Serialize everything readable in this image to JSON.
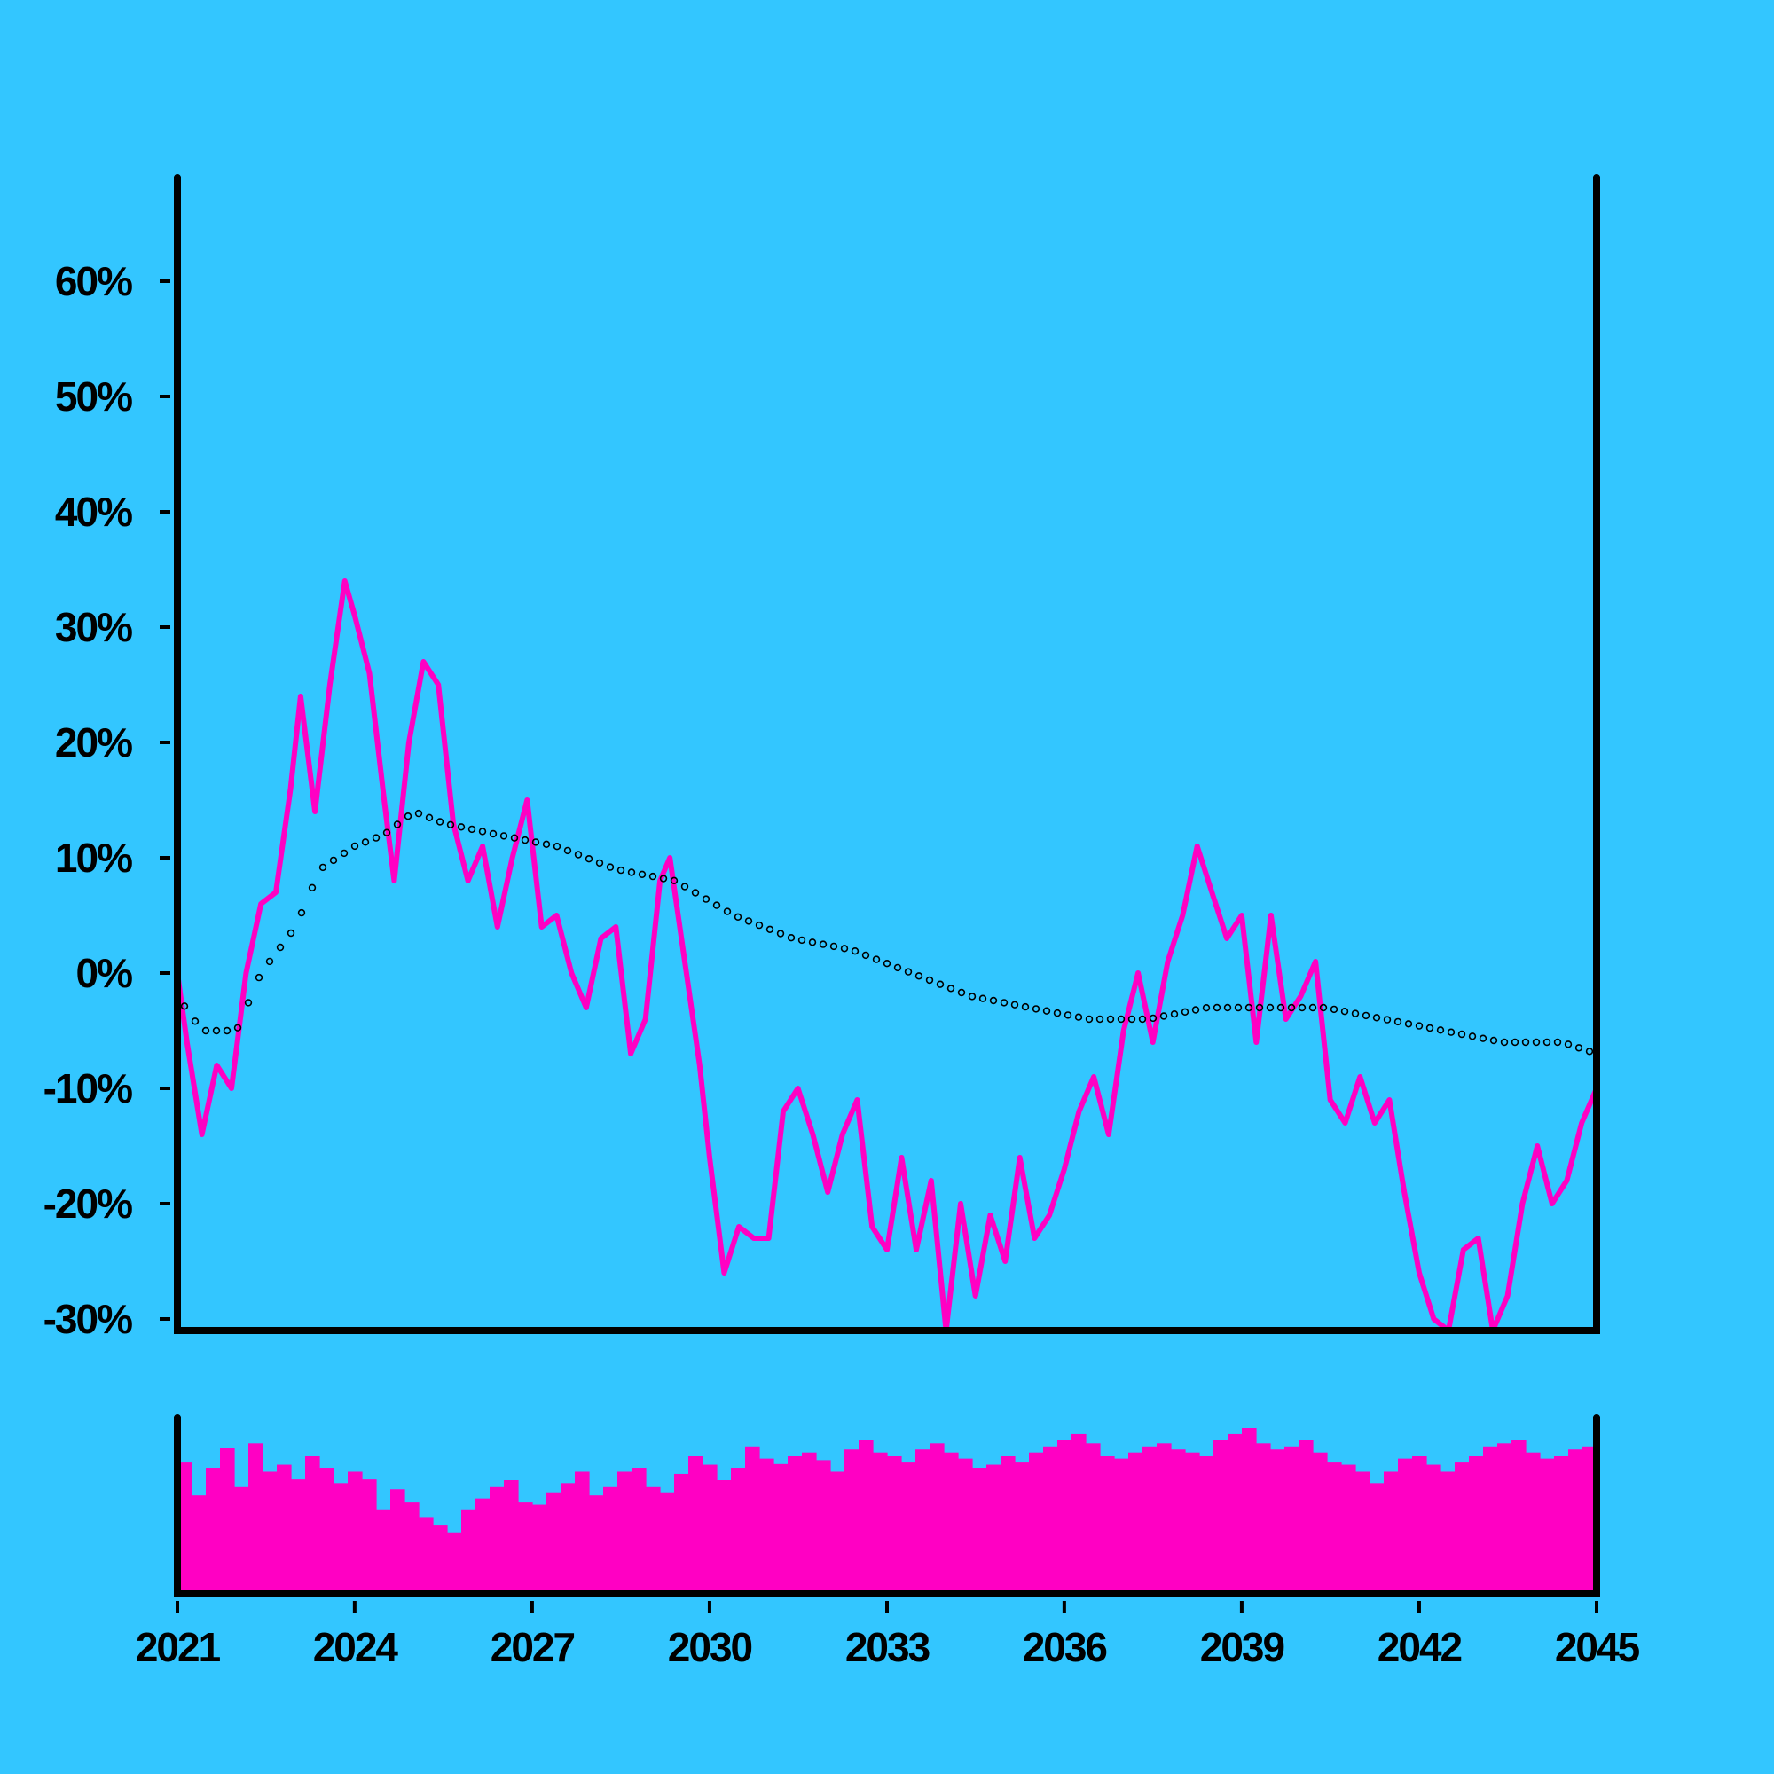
{
  "colors": {
    "background": "#33c6ff",
    "series": "#ff00c3",
    "trend_markers": "#000000",
    "axes": "#000000"
  },
  "chart_data": {
    "type": "line",
    "x_axis": {
      "type": "date",
      "range": [
        "2021-01-01",
        "2045-01-01"
      ],
      "tick_labels": [
        "2021",
        "2024",
        "2027",
        "2030",
        "2033",
        "2036",
        "2039",
        "2042",
        "2045"
      ]
    },
    "y_axis": {
      "unit": "%",
      "range": [
        -31,
        69
      ],
      "tick_labels": [
        "-30%",
        "-20%",
        "-10%",
        "0%",
        "10%",
        "20%",
        "30%",
        "40%",
        "50%",
        "60%"
      ]
    },
    "grid": false,
    "legend": "none",
    "series": [
      {
        "style": "line",
        "points": [
          [
            "2021-01-01",
            0
          ],
          [
            "2021-03-01",
            -6
          ],
          [
            "2021-06-01",
            -14
          ],
          [
            "2021-09-01",
            -8
          ],
          [
            "2021-12-01",
            -10
          ],
          [
            "2022-03-01",
            0
          ],
          [
            "2022-06-01",
            6
          ],
          [
            "2022-09-01",
            7
          ],
          [
            "2022-12-01",
            16
          ],
          [
            "2023-02-01",
            24
          ],
          [
            "2023-05-01",
            14
          ],
          [
            "2023-08-01",
            25
          ],
          [
            "2023-11-01",
            34
          ],
          [
            "2024-01-01",
            31
          ],
          [
            "2024-04-01",
            26
          ],
          [
            "2024-07-01",
            15
          ],
          [
            "2024-09-01",
            8
          ],
          [
            "2024-12-01",
            20
          ],
          [
            "2025-03-01",
            27
          ],
          [
            "2025-06-01",
            25
          ],
          [
            "2025-09-01",
            13
          ],
          [
            "2025-12-01",
            8
          ],
          [
            "2026-03-01",
            11
          ],
          [
            "2026-06-01",
            4
          ],
          [
            "2026-09-01",
            10
          ],
          [
            "2026-12-01",
            15
          ],
          [
            "2027-03-01",
            4
          ],
          [
            "2027-06-01",
            5
          ],
          [
            "2027-09-01",
            0
          ],
          [
            "2027-12-01",
            -3
          ],
          [
            "2028-03-01",
            3
          ],
          [
            "2028-06-01",
            4
          ],
          [
            "2028-09-01",
            -7
          ],
          [
            "2028-12-01",
            -4
          ],
          [
            "2029-03-01",
            8
          ],
          [
            "2029-05-01",
            10
          ],
          [
            "2029-08-01",
            1
          ],
          [
            "2029-11-01",
            -8
          ],
          [
            "2030-01-01",
            -16
          ],
          [
            "2030-04-01",
            -26
          ],
          [
            "2030-07-01",
            -22
          ],
          [
            "2030-10-01",
            -23
          ],
          [
            "2031-01-01",
            -23
          ],
          [
            "2031-04-01",
            -12
          ],
          [
            "2031-07-01",
            -10
          ],
          [
            "2031-10-01",
            -14
          ],
          [
            "2032-01-01",
            -19
          ],
          [
            "2032-04-01",
            -14
          ],
          [
            "2032-07-01",
            -11
          ],
          [
            "2032-10-01",
            -22
          ],
          [
            "2033-01-01",
            -24
          ],
          [
            "2033-04-01",
            -16
          ],
          [
            "2033-07-01",
            -24
          ],
          [
            "2033-10-01",
            -18
          ],
          [
            "2034-01-01",
            -31
          ],
          [
            "2034-04-01",
            -20
          ],
          [
            "2034-07-01",
            -28
          ],
          [
            "2034-10-01",
            -21
          ],
          [
            "2035-01-01",
            -25
          ],
          [
            "2035-04-01",
            -16
          ],
          [
            "2035-07-01",
            -23
          ],
          [
            "2035-10-01",
            -21
          ],
          [
            "2036-01-01",
            -17
          ],
          [
            "2036-04-01",
            -12
          ],
          [
            "2036-07-01",
            -9
          ],
          [
            "2036-10-01",
            -14
          ],
          [
            "2037-01-01",
            -5
          ],
          [
            "2037-04-01",
            0
          ],
          [
            "2037-07-01",
            -6
          ],
          [
            "2037-10-01",
            1
          ],
          [
            "2038-01-01",
            5
          ],
          [
            "2038-04-01",
            11
          ],
          [
            "2038-07-01",
            7
          ],
          [
            "2038-10-01",
            3
          ],
          [
            "2039-01-01",
            5
          ],
          [
            "2039-04-01",
            -6
          ],
          [
            "2039-07-01",
            5
          ],
          [
            "2039-10-01",
            -4
          ],
          [
            "2040-01-01",
            -2
          ],
          [
            "2040-04-01",
            1
          ],
          [
            "2040-07-01",
            -11
          ],
          [
            "2040-10-01",
            -13
          ],
          [
            "2041-01-01",
            -9
          ],
          [
            "2041-04-01",
            -13
          ],
          [
            "2041-07-01",
            -11
          ],
          [
            "2041-10-01",
            -19
          ],
          [
            "2042-01-01",
            -26
          ],
          [
            "2042-04-01",
            -30
          ],
          [
            "2042-07-01",
            -31
          ],
          [
            "2042-10-01",
            -24
          ],
          [
            "2043-01-01",
            -23
          ],
          [
            "2043-04-01",
            -31
          ],
          [
            "2043-07-01",
            -28
          ],
          [
            "2043-10-01",
            -20
          ],
          [
            "2044-01-01",
            -15
          ],
          [
            "2044-04-01",
            -20
          ],
          [
            "2044-07-01",
            -18
          ],
          [
            "2044-10-01",
            -13
          ],
          [
            "2045-01-01",
            -10
          ]
        ]
      },
      {
        "style": "open-circle markers",
        "points": [
          [
            "2021-01-01",
            -2
          ],
          [
            "2021-06-01",
            -5
          ],
          [
            "2022-01-01",
            -5
          ],
          [
            "2022-06-01",
            0
          ],
          [
            "2023-01-01",
            4
          ],
          [
            "2023-06-01",
            9
          ],
          [
            "2024-01-01",
            11
          ],
          [
            "2024-07-01",
            12
          ],
          [
            "2025-01-01",
            14
          ],
          [
            "2025-07-01",
            13
          ],
          [
            "2026-06-01",
            12
          ],
          [
            "2027-06-01",
            11
          ],
          [
            "2028-06-01",
            9
          ],
          [
            "2029-06-01",
            8
          ],
          [
            "2030-06-01",
            5
          ],
          [
            "2031-06-01",
            3
          ],
          [
            "2032-06-01",
            2
          ],
          [
            "2033-06-01",
            0
          ],
          [
            "2034-06-01",
            -2
          ],
          [
            "2035-06-01",
            -3
          ],
          [
            "2036-06-01",
            -4
          ],
          [
            "2037-06-01",
            -4
          ],
          [
            "2038-06-01",
            -3
          ],
          [
            "2039-06-01",
            -3
          ],
          [
            "2040-06-01",
            -3
          ],
          [
            "2041-06-01",
            -4
          ],
          [
            "2042-06-01",
            -5
          ],
          [
            "2043-06-01",
            -6
          ],
          [
            "2044-06-01",
            -6
          ],
          [
            "2045-01-01",
            -7
          ]
        ]
      }
    ],
    "volume": {
      "type": "bar",
      "values": [
        86,
        64,
        82,
        95,
        70,
        98,
        80,
        84,
        75,
        90,
        82,
        72,
        80,
        75,
        55,
        68,
        60,
        50,
        45,
        40,
        55,
        62,
        70,
        74,
        60,
        58,
        66,
        72,
        80,
        64,
        70,
        80,
        82,
        70,
        66,
        78,
        90,
        84,
        74,
        82,
        96,
        88,
        85,
        90,
        92,
        87,
        80,
        94,
        100,
        92,
        90,
        86,
        94,
        98,
        92,
        88,
        82,
        84,
        90,
        86,
        92,
        96,
        100,
        104,
        98,
        90,
        88,
        92,
        96,
        98,
        94,
        92,
        90,
        100,
        104,
        108,
        98,
        94,
        96,
        100,
        92,
        86,
        84,
        80,
        72,
        80,
        88,
        90,
        84,
        80,
        86,
        90,
        96,
        98,
        100,
        92,
        88,
        90,
        94,
        96
      ]
    }
  }
}
